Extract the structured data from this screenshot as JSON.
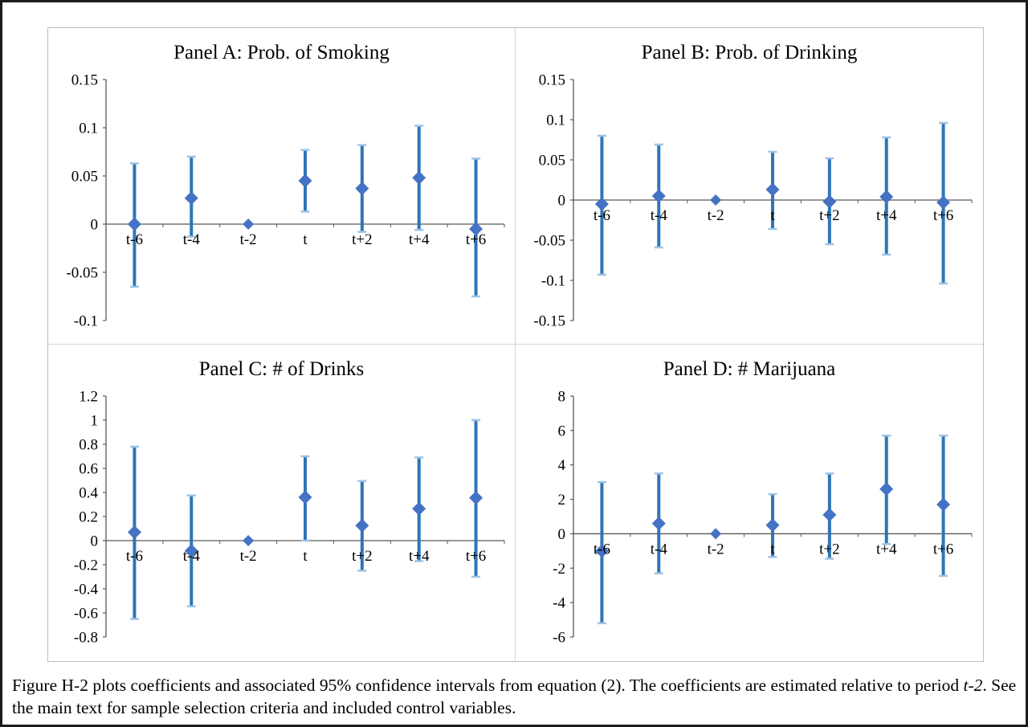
{
  "colors": {
    "marker": "#4472C4",
    "error_bar": "#2E75B6",
    "error_cap": "#9DC3E6",
    "axis": "#595959",
    "text": "#000000"
  },
  "caption": {
    "part1": "Figure H-2 plots coefficients and associated 95% confidence intervals from equation (2).  The coefficients are estimated relative to period ",
    "italic": "t-2",
    "part2": ".  See the main text for sample selection criteria and included control variables."
  },
  "chart_data": [
    {
      "type": "scatter",
      "title": "Panel A: Prob. of Smoking",
      "xlabel": "",
      "ylabel": "",
      "legend": "none",
      "grid": false,
      "categories": [
        "t-6",
        "t-4",
        "t-2",
        "t",
        "t+2",
        "t+4",
        "t+6"
      ],
      "ylim": [
        -0.1,
        0.15
      ],
      "ytick_values": [
        0.15,
        0.1,
        0.05,
        0,
        -0.05,
        -0.1
      ],
      "ytick_labels": [
        "0.15",
        "0.1",
        "0.05",
        "0",
        "-0.05",
        "-0.1"
      ],
      "values": [
        0.0,
        0.027,
        0,
        0.045,
        0.037,
        0.048,
        -0.005
      ],
      "ci_lower": [
        -0.065,
        -0.013,
        null,
        0.013,
        -0.008,
        -0.006,
        -0.075
      ],
      "ci_upper": [
        0.063,
        0.07,
        null,
        0.077,
        0.082,
        0.102,
        0.068
      ]
    },
    {
      "type": "scatter",
      "title": "Panel B: Prob. of Drinking",
      "xlabel": "",
      "ylabel": "",
      "legend": "none",
      "grid": false,
      "categories": [
        "t-6",
        "t-4",
        "t-2",
        "t",
        "t+2",
        "t+4",
        "t+6"
      ],
      "ylim": [
        -0.15,
        0.15
      ],
      "ytick_values": [
        0.15,
        0.1,
        0.05,
        0,
        -0.05,
        -0.1,
        -0.15
      ],
      "ytick_labels": [
        "0.15",
        "0.1",
        "0.05",
        "0",
        "-0.05",
        "-0.1",
        "-0.15"
      ],
      "values": [
        -0.005,
        0.005,
        0,
        0.013,
        -0.002,
        0.004,
        -0.003
      ],
      "ci_lower": [
        -0.093,
        -0.059,
        null,
        -0.036,
        -0.055,
        -0.068,
        -0.104
      ],
      "ci_upper": [
        0.08,
        0.069,
        null,
        0.06,
        0.052,
        0.078,
        0.096
      ]
    },
    {
      "type": "scatter",
      "title": "Panel C: # of Drinks",
      "xlabel": "",
      "ylabel": "",
      "legend": "none",
      "grid": false,
      "categories": [
        "t-6",
        "t-4",
        "t-2",
        "t",
        "t+2",
        "t+4",
        "t+6"
      ],
      "ylim": [
        -0.8,
        1.2
      ],
      "ytick_values": [
        1.2,
        1,
        0.8,
        0.6,
        0.4,
        0.2,
        0,
        -0.2,
        -0.4,
        -0.6,
        -0.8
      ],
      "ytick_labels": [
        "1.2",
        "1",
        "0.8",
        "0.6",
        "0.4",
        "0.2",
        "0",
        "-0.2",
        "-0.4",
        "-0.6",
        "-0.8"
      ],
      "values": [
        0.07,
        -0.085,
        0,
        0.36,
        0.125,
        0.265,
        0.355
      ],
      "ci_lower": [
        -0.65,
        -0.545,
        null,
        0.0,
        -0.25,
        -0.17,
        -0.3
      ],
      "ci_upper": [
        0.78,
        0.375,
        null,
        0.7,
        0.495,
        0.69,
        1.0
      ]
    },
    {
      "type": "scatter",
      "title": "Panel D: # Marijuana",
      "xlabel": "",
      "ylabel": "",
      "legend": "none",
      "grid": false,
      "categories": [
        "t-6",
        "t-4",
        "t-2",
        "t",
        "t+2",
        "t+4",
        "t+6"
      ],
      "ylim": [
        -6,
        8
      ],
      "ytick_values": [
        8,
        6,
        4,
        2,
        0,
        -2,
        -4,
        -6
      ],
      "ytick_labels": [
        "8",
        "6",
        "4",
        "2",
        "0",
        "-2",
        "-4",
        "-6"
      ],
      "values": [
        -1.0,
        0.6,
        0,
        0.5,
        1.1,
        2.6,
        1.7
      ],
      "ci_lower": [
        -5.2,
        -2.3,
        null,
        -1.35,
        -1.45,
        -0.6,
        -2.45
      ],
      "ci_upper": [
        3.0,
        3.5,
        null,
        2.3,
        3.5,
        5.7,
        5.7
      ]
    }
  ]
}
